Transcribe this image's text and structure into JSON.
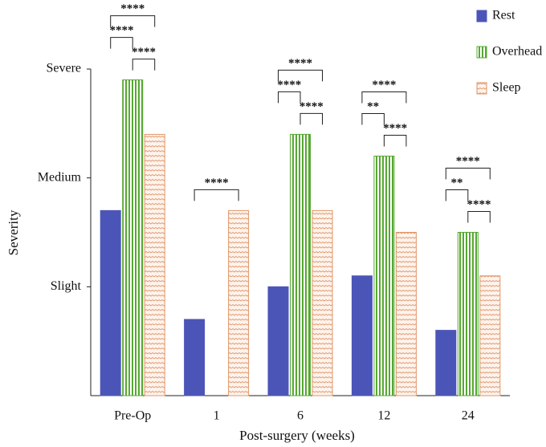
{
  "chart_data": {
    "type": "bar",
    "categories": [
      "Pre-Op",
      "1",
      "6",
      "12",
      "24"
    ],
    "series": [
      {
        "name": "Rest",
        "color": "#4b55b8",
        "fill": "solid",
        "values": [
          1.7,
          0.7,
          1.0,
          1.1,
          0.6
        ]
      },
      {
        "name": "Overhead",
        "color": "#56a832",
        "fill": "vertical-stripes",
        "values": [
          2.9,
          null,
          2.4,
          2.2,
          1.5
        ]
      },
      {
        "name": "Sleep",
        "color": "#e0966a",
        "fill": "wavy-dots",
        "values": [
          2.4,
          1.7,
          1.7,
          1.5,
          1.1
        ]
      }
    ],
    "ylim": [
      0,
      3
    ],
    "yticks": [
      {
        "value": 1,
        "label": "Slight"
      },
      {
        "value": 2,
        "label": "Medium"
      },
      {
        "value": 3,
        "label": "Severe"
      }
    ],
    "xlabel": "Post-surgery (weeks)",
    "ylabel": "Severity",
    "legend": "top-right",
    "significance": [
      [
        {
          "pair": [
            "Overhead",
            "Sleep"
          ],
          "label": "****"
        },
        {
          "pair": [
            "Rest",
            "Overhead"
          ],
          "label": "****"
        },
        {
          "pair": [
            "Rest",
            "Sleep"
          ],
          "label": "****"
        }
      ],
      [
        {
          "pair": [
            "Rest",
            "Sleep"
          ],
          "label": "****"
        }
      ],
      [
        {
          "pair": [
            "Overhead",
            "Sleep"
          ],
          "label": "****"
        },
        {
          "pair": [
            "Rest",
            "Overhead"
          ],
          "label": "****"
        },
        {
          "pair": [
            "Rest",
            "Sleep"
          ],
          "label": "****"
        }
      ],
      [
        {
          "pair": [
            "Overhead",
            "Sleep"
          ],
          "label": "****"
        },
        {
          "pair": [
            "Rest",
            "Overhead"
          ],
          "label": "**"
        },
        {
          "pair": [
            "Rest",
            "Sleep"
          ],
          "label": "****"
        }
      ],
      [
        {
          "pair": [
            "Overhead",
            "Sleep"
          ],
          "label": "****"
        },
        {
          "pair": [
            "Rest",
            "Overhead"
          ],
          "label": "**"
        },
        {
          "pair": [
            "Rest",
            "Sleep"
          ],
          "label": "****"
        }
      ]
    ]
  }
}
